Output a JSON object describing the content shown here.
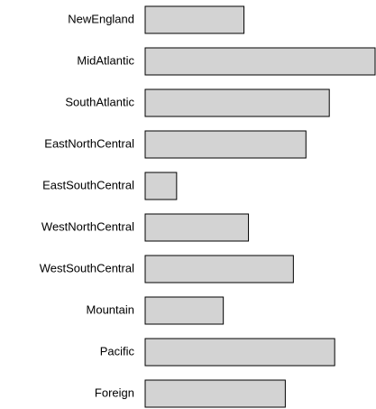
{
  "chart_data": {
    "type": "bar",
    "orientation": "horizontal",
    "categories": [
      "NewEngland",
      "MidAtlantic",
      "SouthAtlantic",
      "EastNorthCentral",
      "EastSouthCentral",
      "WestNorthCentral",
      "WestSouthCentral",
      "Mountain",
      "Pacific",
      "Foreign"
    ],
    "values": [
      110,
      256,
      205,
      179,
      35,
      115,
      165,
      87,
      211,
      156
    ],
    "color": "#d3d3d3"
  }
}
